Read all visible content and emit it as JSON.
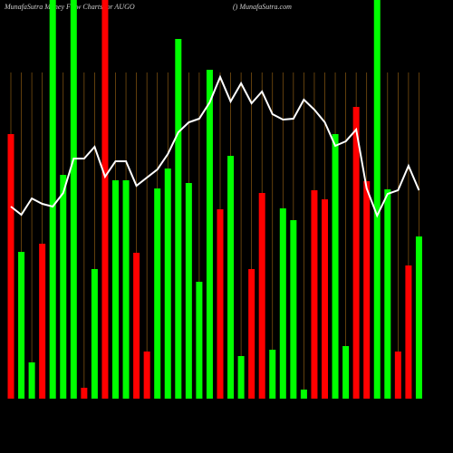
{
  "chart_data": {
    "type": "bar",
    "title": "MunafaSutra  Money Flow Charts for AUGO",
    "subtitle": "() MunafaSutra.com",
    "ylim": [
      0,
      440
    ],
    "grid": true,
    "grid_color": "#8a5a12",
    "background": "#000000",
    "series": [
      {
        "values": [
          292,
          162,
          40,
          171,
          460,
          247,
          460,
          12,
          143,
          460,
          241,
          241,
          161,
          52,
          232,
          254,
          397,
          238,
          129,
          363,
          209,
          268,
          47,
          143,
          227,
          54,
          210,
          197,
          10,
          230,
          220,
          292,
          58,
          322,
          240,
          460,
          231,
          52,
          147,
          179
        ],
        "colors": [
          "#ff0000",
          "#00ff00",
          "#00ff00",
          "#ff0000",
          "#00ff00",
          "#00ff00",
          "#00ff00",
          "#ff0000",
          "#00ff00",
          "#ff0000",
          "#00ff00",
          "#00ff00",
          "#ff0000",
          "#ff0000",
          "#00ff00",
          "#00ff00",
          "#00ff00",
          "#00ff00",
          "#00ff00",
          "#00ff00",
          "#ff0000",
          "#00ff00",
          "#00ff00",
          "#ff0000",
          "#ff0000",
          "#00ff00",
          "#00ff00",
          "#00ff00",
          "#00ff00",
          "#ff0000",
          "#ff0000",
          "#00ff00",
          "#00ff00",
          "#ff0000",
          "#ff0000",
          "#00ff00",
          "#00ff00",
          "#ff0000",
          "#ff0000",
          "#00ff00"
        ]
      },
      {
        "type": "line",
        "color": "#ffffff",
        "values": [
          212,
          203,
          221,
          215,
          212,
          227,
          265,
          265,
          278,
          245,
          262,
          262,
          235,
          244,
          253,
          270,
          294,
          305,
          309,
          327,
          355,
          328,
          348,
          326,
          339,
          314,
          308,
          309,
          330,
          319,
          305,
          279,
          284,
          297,
          232,
          202,
          226,
          230,
          257,
          230
        ]
      }
    ]
  }
}
